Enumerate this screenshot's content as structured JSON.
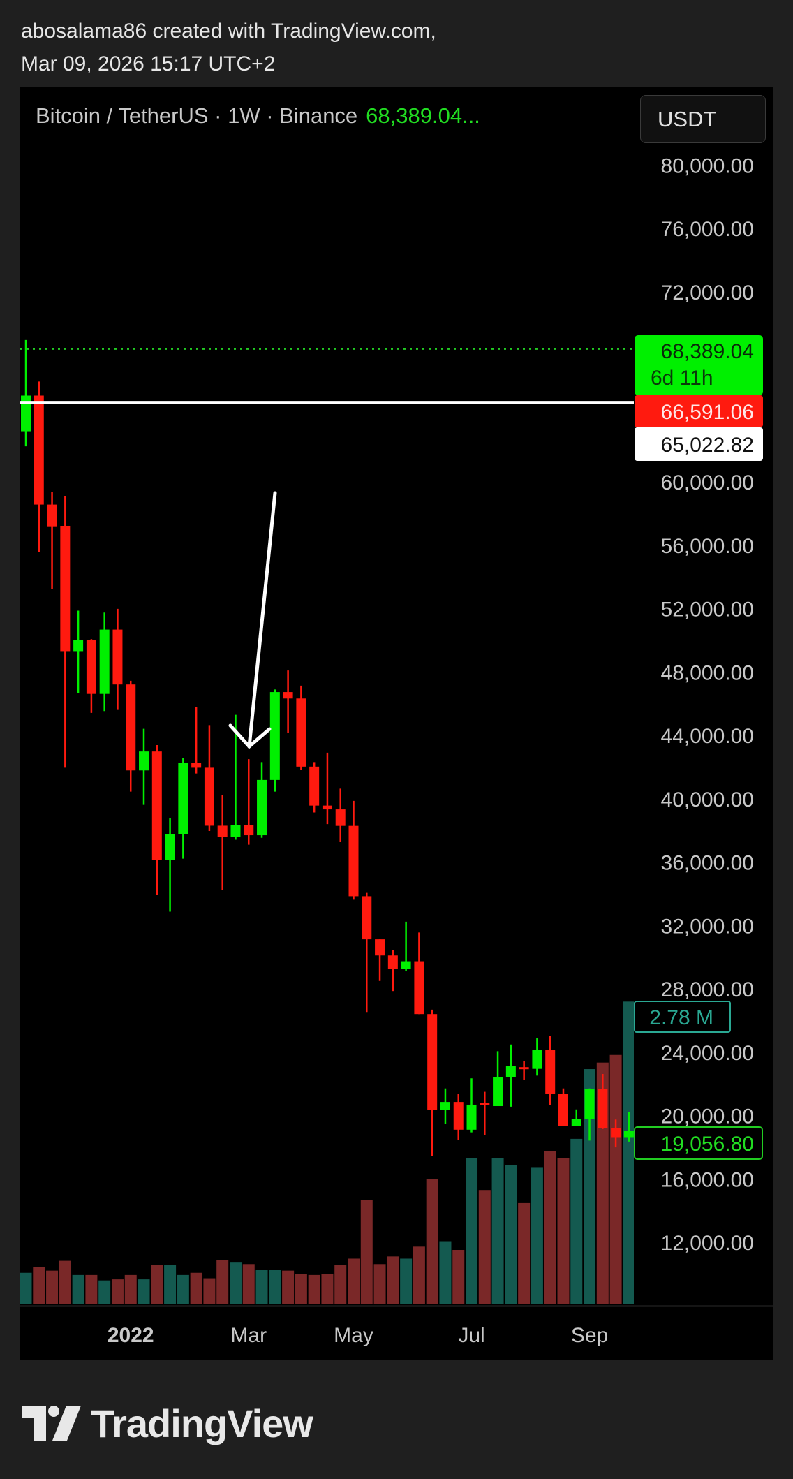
{
  "header": {
    "line1": "abosalama86 created with TradingView.com,",
    "line2": "Mar 09, 2026 15:17 UTC+2"
  },
  "legend": {
    "symbol": "Bitcoin / TetherUS · 1W · Binance",
    "last_price": "68,389.04..."
  },
  "currency_button": "USDT",
  "price_labels": {
    "last": "68,389.04",
    "countdown": "6d 11h",
    "red": "66,591.06",
    "hline": "65,022.82",
    "volume": "2.78 M",
    "visible_close": "19,056.80"
  },
  "logo": {
    "text": "TradingView"
  },
  "colors": {
    "up": "#00f000",
    "down": "#ff1a0f",
    "vol_up": "#145a50",
    "vol_down": "#7a2828",
    "axis_text": "#c8c8c8",
    "hline": "#ffffff",
    "last_line": "#22cc22",
    "volume_label": "#2aa893"
  },
  "chart_data": {
    "type": "candlestick",
    "title": "Bitcoin / TetherUS · 1W · Binance",
    "ylim": [
      10000,
      82000
    ],
    "y_ticks": [
      80000,
      76000,
      72000,
      68000,
      64000,
      60000,
      56000,
      52000,
      48000,
      44000,
      40000,
      36000,
      32000,
      28000,
      24000,
      20000,
      16000,
      12000
    ],
    "y_tick_labels": [
      "80,000.00",
      "76,000.00",
      "72,000.00",
      "",
      "",
      "60,000.00",
      "56,000.00",
      "52,000.00",
      "48,000.00",
      "44,000.00",
      "40,000.00",
      "36,000.00",
      "32,000.00",
      "28,000.00",
      "24,000.00",
      "20,000.00",
      "16,000.00",
      "12,000.00"
    ],
    "x_ticks": [
      {
        "label": "2022",
        "date": "2022-01-03",
        "bold": true
      },
      {
        "label": "Mar",
        "date": "2022-03-07"
      },
      {
        "label": "May",
        "date": "2022-05-02"
      },
      {
        "label": "Jul",
        "date": "2022-07-04"
      },
      {
        "label": "Sep",
        "date": "2022-09-05"
      }
    ],
    "horizontal_line": 65022.82,
    "last_price_line": 68389.04,
    "dates": [
      "2021-11-08",
      "2021-11-15",
      "2021-11-22",
      "2021-11-29",
      "2021-12-06",
      "2021-12-13",
      "2021-12-20",
      "2021-12-27",
      "2022-01-03",
      "2022-01-10",
      "2022-01-17",
      "2022-01-24",
      "2022-01-31",
      "2022-02-07",
      "2022-02-14",
      "2022-02-21",
      "2022-02-28",
      "2022-03-07",
      "2022-03-14",
      "2022-03-21",
      "2022-03-28",
      "2022-04-04",
      "2022-04-11",
      "2022-04-18",
      "2022-04-25",
      "2022-05-02",
      "2022-05-09",
      "2022-05-16",
      "2022-05-23",
      "2022-05-30",
      "2022-06-06",
      "2022-06-13",
      "2022-06-20",
      "2022-06-27",
      "2022-07-04",
      "2022-07-11",
      "2022-07-18",
      "2022-07-25",
      "2022-08-01",
      "2022-08-08",
      "2022-08-15",
      "2022-08-22",
      "2022-08-29",
      "2022-09-05",
      "2022-09-12",
      "2022-09-19",
      "2022-09-26"
    ],
    "ohlc": [
      [
        63200,
        68960,
        62250,
        65450
      ],
      [
        65450,
        66335,
        55580,
        58570
      ],
      [
        58570,
        59380,
        53240,
        57200
      ],
      [
        57230,
        59120,
        41960,
        49320
      ],
      [
        49320,
        51875,
        46690,
        50010
      ],
      [
        50010,
        50080,
        45420,
        46620
      ],
      [
        46620,
        51755,
        45540,
        50680
      ],
      [
        50680,
        51990,
        45610,
        47215
      ],
      [
        47215,
        47450,
        40450,
        41790
      ],
      [
        41790,
        44420,
        39615,
        42985
      ],
      [
        42985,
        43390,
        33950,
        36150
      ],
      [
        36150,
        38800,
        32875,
        37770
      ],
      [
        37770,
        42550,
        36220,
        42270
      ],
      [
        42270,
        45780,
        41600,
        41960
      ],
      [
        41960,
        44650,
        37965,
        38300
      ],
      [
        38300,
        40235,
        34260,
        37610
      ],
      [
        37610,
        45300,
        37415,
        38350
      ],
      [
        38350,
        42500,
        37100,
        37700
      ],
      [
        37700,
        42315,
        37535,
        41190
      ],
      [
        41190,
        46900,
        40450,
        46735
      ],
      [
        46735,
        48100,
        44155,
        46330
      ],
      [
        46330,
        47140,
        41835,
        42030
      ],
      [
        42030,
        42315,
        39135,
        39570
      ],
      [
        39570,
        42910,
        38400,
        39330
      ],
      [
        39330,
        40640,
        37260,
        38290
      ],
      [
        38290,
        39870,
        33630,
        33850
      ],
      [
        33850,
        34060,
        26540,
        31130
      ],
      [
        31130,
        31130,
        28500,
        30110
      ],
      [
        30110,
        30470,
        27865,
        29250
      ],
      [
        29250,
        32245,
        29145,
        29745
      ],
      [
        29745,
        31560,
        26410,
        26410
      ],
      [
        26410,
        26690,
        17460,
        20345
      ],
      [
        20345,
        21715,
        19470,
        20860
      ],
      [
        20860,
        21350,
        18470,
        19110
      ],
      [
        19110,
        22355,
        18940,
        20690
      ],
      [
        20780,
        21500,
        18790,
        20690
      ],
      [
        20600,
        24065,
        20600,
        22420
      ],
      [
        22420,
        24490,
        20560,
        23125
      ],
      [
        23060,
        23445,
        22270,
        22950
      ],
      [
        22950,
        24875,
        22525,
        24130
      ],
      [
        24130,
        25045,
        20645,
        21350
      ],
      [
        21350,
        21715,
        19365,
        19365
      ],
      [
        19365,
        20390,
        19365,
        19790
      ],
      [
        19790,
        21715,
        18425,
        21670
      ],
      [
        21670,
        22630,
        19150,
        19215
      ],
      [
        19215,
        19750,
        17995,
        18640
      ],
      [
        18640,
        20220,
        18360,
        19056.8
      ]
    ],
    "volume_unit": "M",
    "volume": [
      0.29,
      0.34,
      0.31,
      0.4,
      0.27,
      0.27,
      0.22,
      0.23,
      0.27,
      0.23,
      0.36,
      0.36,
      0.27,
      0.29,
      0.24,
      0.41,
      0.39,
      0.37,
      0.32,
      0.32,
      0.31,
      0.28,
      0.27,
      0.28,
      0.36,
      0.42,
      0.96,
      0.37,
      0.44,
      0.42,
      0.53,
      1.15,
      0.58,
      0.5,
      1.34,
      1.05,
      1.34,
      1.28,
      0.93,
      1.26,
      1.41,
      1.34,
      1.52,
      2.16,
      2.22,
      2.29,
      2.78
    ]
  }
}
